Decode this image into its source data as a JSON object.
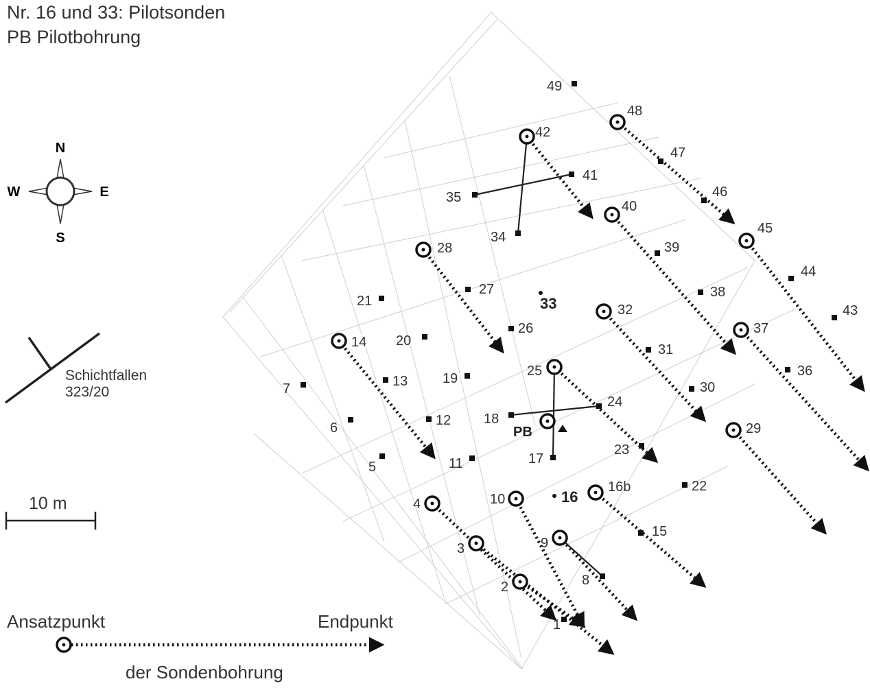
{
  "header": {
    "line1": "Nr. 16 und 33: Pilotsonden",
    "line2": "PB Pilotbohrung"
  },
  "compass": {
    "n": "N",
    "e": "E",
    "s": "S",
    "w": "W"
  },
  "dip": {
    "label": "Schichtfallen",
    "value": "323/20"
  },
  "scale": {
    "label": "10 m"
  },
  "legend": {
    "start": "Ansatzpunkt",
    "end": "Endpunkt",
    "caption": "der Sondenbohrung"
  },
  "map": {
    "pilot_labels": {
      "p33": "33",
      "p16": "16",
      "pb": "PB"
    },
    "points": [
      {
        "id": "1",
        "type": "square",
        "label": "1"
      },
      {
        "id": "2",
        "type": "circle",
        "label": "2"
      },
      {
        "id": "3",
        "type": "circle",
        "label": "3"
      },
      {
        "id": "4",
        "type": "circle",
        "label": "4"
      },
      {
        "id": "5",
        "type": "square",
        "label": "5"
      },
      {
        "id": "6",
        "type": "square",
        "label": "6"
      },
      {
        "id": "7",
        "type": "square",
        "label": "7"
      },
      {
        "id": "8",
        "type": "square",
        "label": "8"
      },
      {
        "id": "9",
        "type": "circle",
        "label": "9"
      },
      {
        "id": "10",
        "type": "circle",
        "label": "10"
      },
      {
        "id": "11",
        "type": "square",
        "label": "11"
      },
      {
        "id": "12",
        "type": "square",
        "label": "12"
      },
      {
        "id": "13",
        "type": "square",
        "label": "13"
      },
      {
        "id": "14",
        "type": "circle",
        "label": "14"
      },
      {
        "id": "15",
        "type": "square",
        "label": "15"
      },
      {
        "id": "16b",
        "type": "circle",
        "label": "16b"
      },
      {
        "id": "17",
        "type": "square",
        "label": "17"
      },
      {
        "id": "18",
        "type": "square",
        "label": "18"
      },
      {
        "id": "19",
        "type": "square",
        "label": "19"
      },
      {
        "id": "20",
        "type": "square",
        "label": "20"
      },
      {
        "id": "21",
        "type": "square",
        "label": "21"
      },
      {
        "id": "22",
        "type": "square",
        "label": "22"
      },
      {
        "id": "23",
        "type": "square",
        "label": "23"
      },
      {
        "id": "24",
        "type": "square",
        "label": "24"
      },
      {
        "id": "25",
        "type": "circle",
        "label": "25"
      },
      {
        "id": "26",
        "type": "square",
        "label": "26"
      },
      {
        "id": "27",
        "type": "square",
        "label": "27"
      },
      {
        "id": "28",
        "type": "circle",
        "label": "28"
      },
      {
        "id": "29",
        "type": "circle",
        "label": "29"
      },
      {
        "id": "30",
        "type": "square",
        "label": "30"
      },
      {
        "id": "31",
        "type": "square",
        "label": "31"
      },
      {
        "id": "32",
        "type": "circle",
        "label": "32"
      },
      {
        "id": "34",
        "type": "square",
        "label": "34"
      },
      {
        "id": "35",
        "type": "square",
        "label": "35"
      },
      {
        "id": "36",
        "type": "square",
        "label": "36"
      },
      {
        "id": "37",
        "type": "circle",
        "label": "37"
      },
      {
        "id": "38",
        "type": "square",
        "label": "38"
      },
      {
        "id": "39",
        "type": "square",
        "label": "39"
      },
      {
        "id": "40",
        "type": "circle",
        "label": "40"
      },
      {
        "id": "41",
        "type": "square",
        "label": "41"
      },
      {
        "id": "42",
        "type": "circle",
        "label": "42"
      },
      {
        "id": "43",
        "type": "square",
        "label": "43"
      },
      {
        "id": "44",
        "type": "square",
        "label": "44"
      },
      {
        "id": "45",
        "type": "circle",
        "label": "45"
      },
      {
        "id": "46",
        "type": "square",
        "label": "46"
      },
      {
        "id": "47",
        "type": "square",
        "label": "47"
      },
      {
        "id": "48",
        "type": "circle",
        "label": "48"
      },
      {
        "id": "49",
        "type": "square",
        "label": "49"
      }
    ]
  }
}
